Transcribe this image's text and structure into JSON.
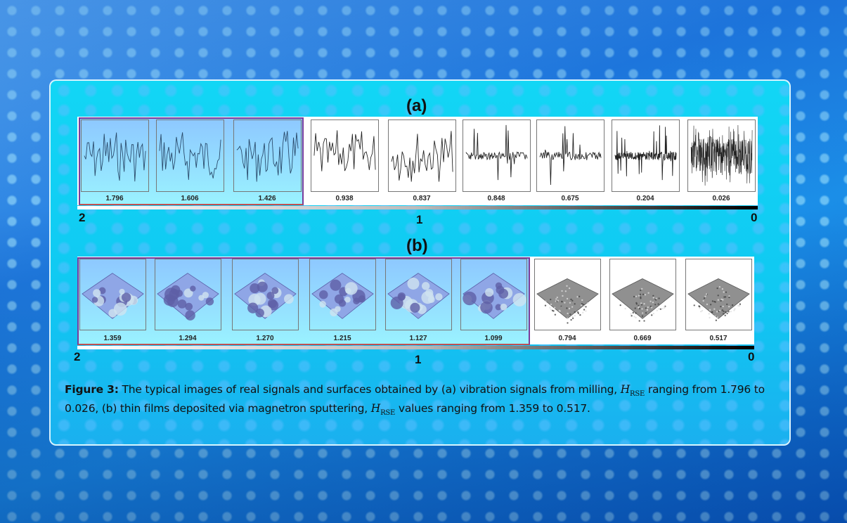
{
  "panel_a": {
    "title": "(a)",
    "highlight_count": 3,
    "values": [
      "1.796",
      "1.606",
      "1.426",
      "0.938",
      "0.837",
      "0.848",
      "0.675",
      "0.204",
      "0.026"
    ],
    "scale_labels": [
      "2",
      "1",
      "0"
    ]
  },
  "panel_b": {
    "title": "(b)",
    "highlight_count": 6,
    "values": [
      "1.359",
      "1.294",
      "1.270",
      "1.215",
      "1.127",
      "1.099",
      "0.794",
      "0.669",
      "0.517"
    ],
    "scale_labels": [
      "2",
      "1",
      "0"
    ]
  },
  "caption": {
    "label": "Figure 3:",
    "text1": " The typical images of real signals and surfaces obtained by (a) vibration signals from milling, ",
    "symbol": "H",
    "subscript": "RSE",
    "text2": " ranging from 1.796 to 0.026, (b) thin films deposited via magnetron sputtering, ",
    "text3": " values ranging from 1.359 to 0.517."
  },
  "colors": {
    "highlight_border": "#7a3c9a",
    "panel_bg": "#12d6f5",
    "surface_rough": "#8a8a8a",
    "surface_smooth": "#8aa0e0"
  }
}
